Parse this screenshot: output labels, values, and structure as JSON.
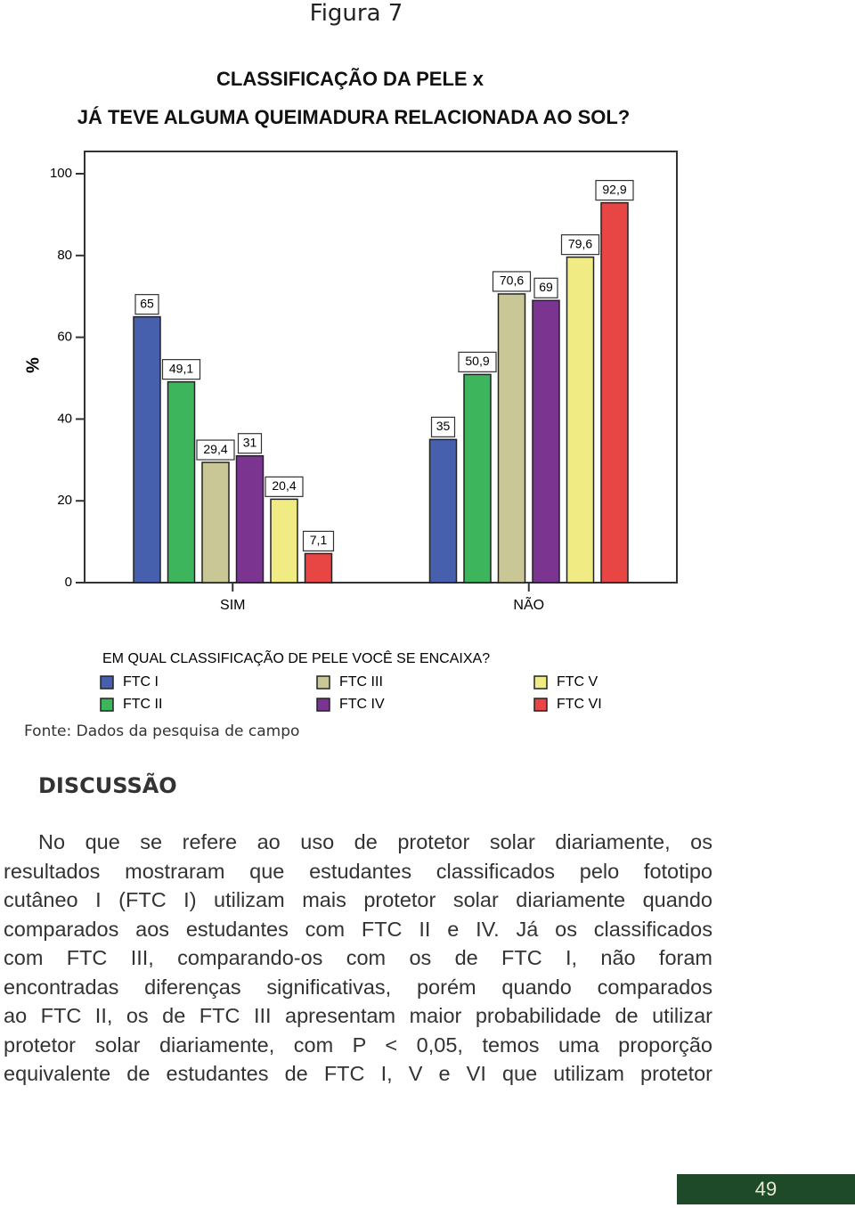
{
  "figure_label": "Figura 7",
  "chart_data": {
    "type": "bar",
    "title": [
      "CLASSIFICAÇÃO DA PELE x",
      "JÁ TEVE ALGUMA QUEIMADURA RELACIONADA AO SOL?"
    ],
    "ylabel": "%",
    "categories": [
      "SIM",
      "NÃO"
    ],
    "series": [
      {
        "name": "FTC I",
        "color": "#4660ad",
        "values": [
          65,
          35
        ],
        "value_labels": [
          "65",
          "35"
        ]
      },
      {
        "name": "FTC II",
        "color": "#3cb55c",
        "values": [
          49.1,
          50.9
        ],
        "value_labels": [
          "49,1",
          "50,9"
        ]
      },
      {
        "name": "FTC III",
        "color": "#c9c796",
        "values": [
          29.4,
          70.6
        ],
        "value_labels": [
          "29,4",
          "70,6"
        ]
      },
      {
        "name": "FTC IV",
        "color": "#7b3590",
        "values": [
          31,
          69
        ],
        "value_labels": [
          "31",
          "69"
        ]
      },
      {
        "name": "FTC V",
        "color": "#f0eb82",
        "values": [
          20.4,
          79.6
        ],
        "value_labels": [
          "20,4",
          "79,6"
        ]
      },
      {
        "name": "FTC VI",
        "color": "#e84545",
        "values": [
          7.1,
          92.9
        ],
        "value_labels": [
          "7,1",
          "92,9"
        ]
      }
    ],
    "ylim": [
      0,
      100
    ],
    "yticks": [
      0,
      20,
      40,
      60,
      80,
      100
    ],
    "legend_title": "EM QUAL CLASSIFICAÇÃO DE PELE VOCÊ SE ENCAIXA?"
  },
  "source": "Fonte: Dados da pesquisa de campo",
  "heading": "DISCUSSÃO",
  "paragraph": [
    "No que se refere ao uso de protetor solar diariamente, os",
    "resultados mostraram que estudantes classificados pelo fototipo",
    "cutâneo I (FTC I) utilizam mais protetor solar diariamente quando",
    "comparados aos estudantes com FTC II e IV. Já os classificados",
    "com FTC III, comparando-os com os de FTC I, não foram",
    "encontradas diferenças significativas, porém quando comparados",
    "ao FTC II, os de FTC III apresentam maior probabilidade de utilizar",
    "protetor solar diariamente, com P < 0,05, temos uma proporção",
    "equivalente de estudantes de FTC I, V e VI que utilizam protetor"
  ],
  "page_number": "49"
}
